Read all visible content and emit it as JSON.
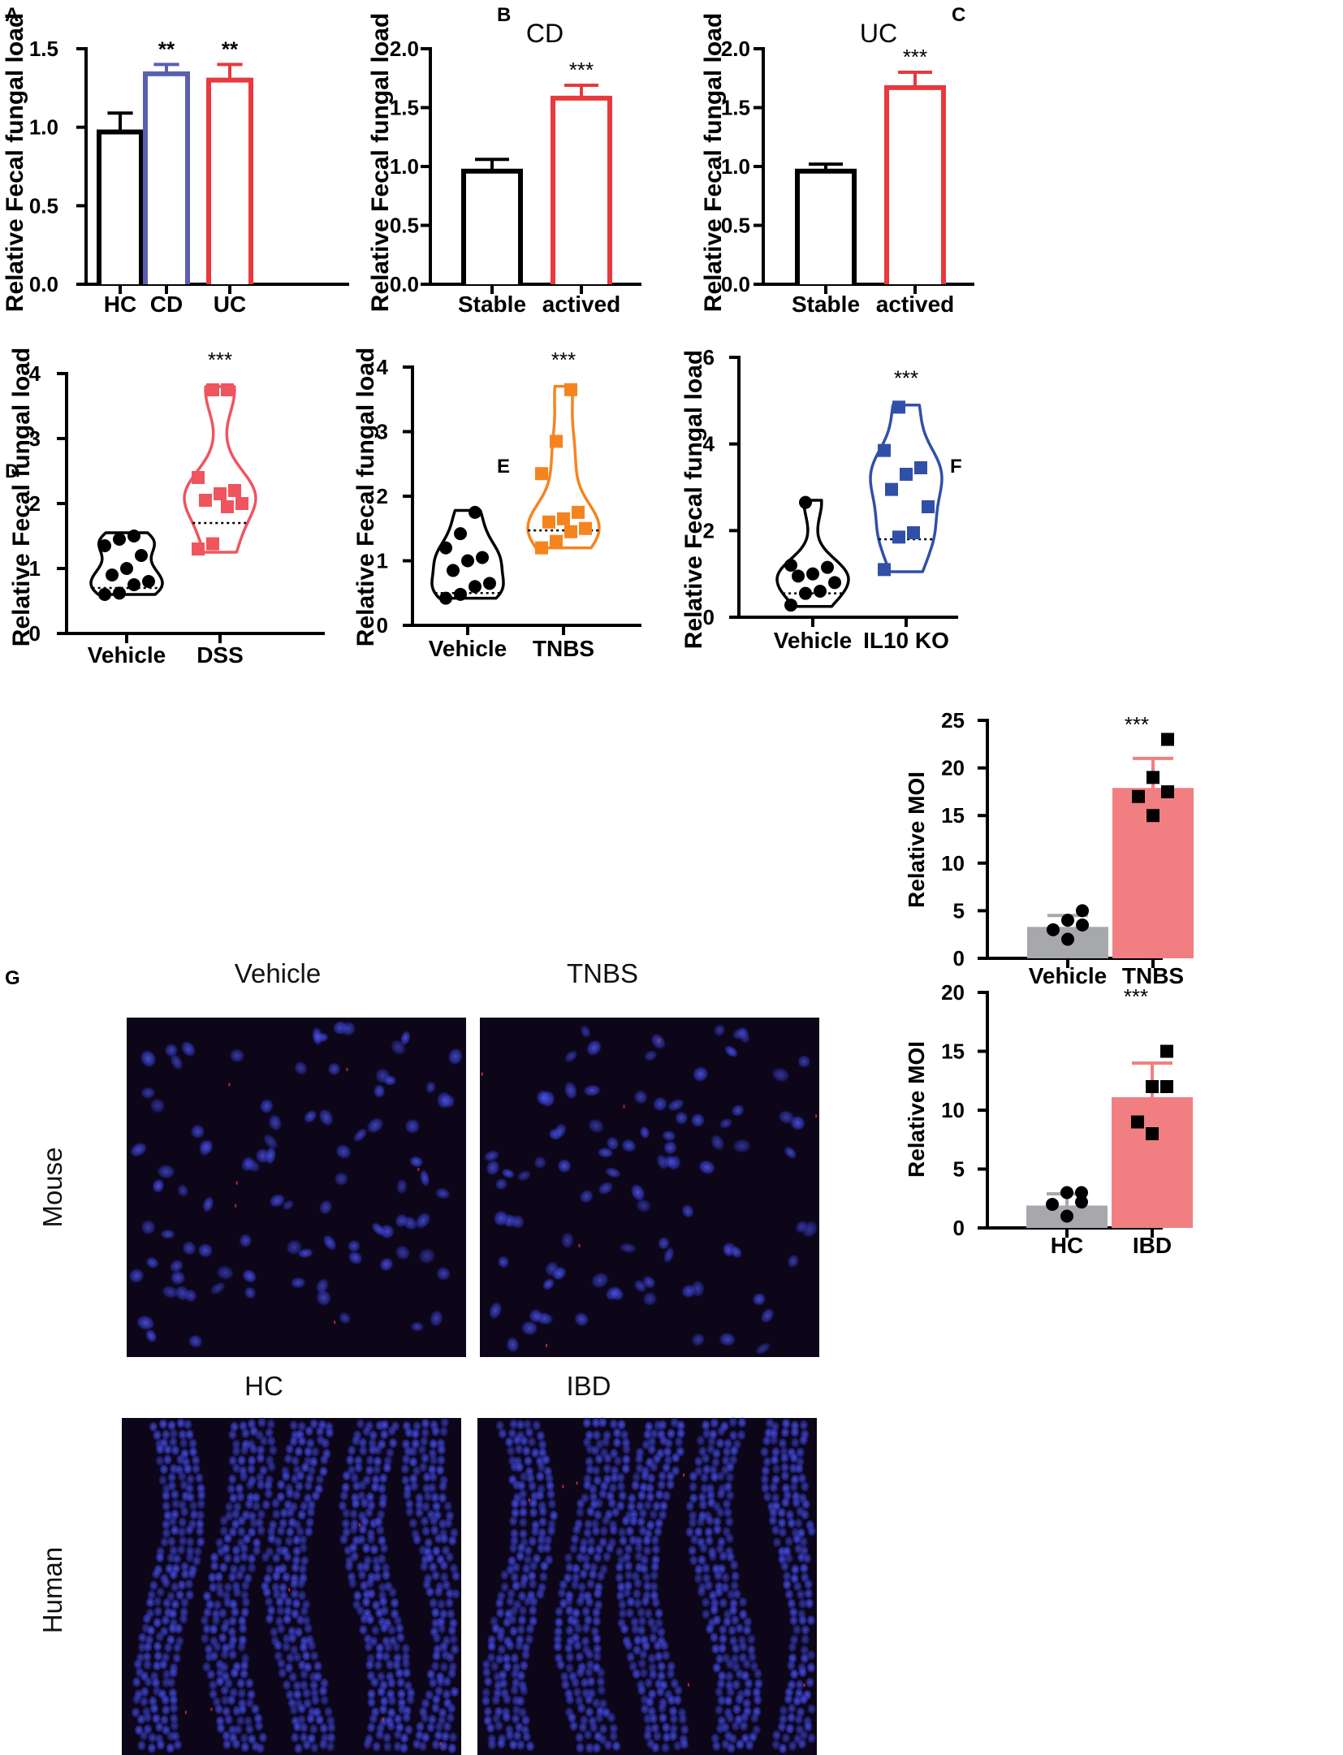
{
  "colors": {
    "black": "#000000",
    "blue": "#5b5fb0",
    "red": "#e8393e",
    "red_light": "#f0545e",
    "orange": "#f5841f",
    "navy": "#3050a8",
    "grey_bar": "#a7a8ac",
    "pink_bar": "#f17f82",
    "image_bg": "#0c0618",
    "nuclei": "#3a3fd0"
  },
  "panels": {
    "A": {
      "letter": "A"
    },
    "B": {
      "letter": "B"
    },
    "C": {
      "letter": "C"
    },
    "D": {
      "letter": "D"
    },
    "E": {
      "letter": "E"
    },
    "F": {
      "letter": "F"
    },
    "G": {
      "letter": "G",
      "col_labels_top": [
        "Vehicle",
        "TNBS"
      ],
      "col_labels_bottom": [
        "HC",
        "IBD"
      ],
      "row_labels": [
        "Mouse",
        "Human"
      ]
    }
  },
  "chart_data": [
    {
      "id": "A",
      "type": "bar",
      "title": "",
      "ylabel": "Relative Fecal fungal load",
      "categories": [
        "HC",
        "CD",
        "UC"
      ],
      "values": [
        0.97,
        1.34,
        1.3
      ],
      "errors": [
        0.12,
        0.06,
        0.1
      ],
      "bar_colors": [
        "#000000",
        "#5b5fb0",
        "#e8393e"
      ],
      "significance": [
        "",
        "**",
        "**"
      ],
      "ylim": [
        0,
        1.5
      ],
      "yticks": [
        "0.0",
        "0.5",
        "1.0",
        "1.5"
      ]
    },
    {
      "id": "B",
      "type": "bar",
      "title": "CD",
      "ylabel": "Relative Fecal fungal load",
      "categories": [
        "Stable",
        "actived"
      ],
      "values": [
        0.96,
        1.58
      ],
      "errors": [
        0.1,
        0.11
      ],
      "bar_colors": [
        "#000000",
        "#e8393e"
      ],
      "significance": [
        "",
        "***"
      ],
      "ylim": [
        0,
        2.0
      ],
      "yticks": [
        "0.0",
        "0.5",
        "1.0",
        "1.5",
        "2.0"
      ]
    },
    {
      "id": "C",
      "type": "bar",
      "title": "UC",
      "ylabel": "Relative Fecal fungal load",
      "categories": [
        "Stable",
        "actived"
      ],
      "values": [
        0.96,
        1.67
      ],
      "errors": [
        0.06,
        0.13
      ],
      "bar_colors": [
        "#000000",
        "#e8393e"
      ],
      "significance": [
        "",
        "***"
      ],
      "ylim": [
        0,
        2.0
      ],
      "yticks": [
        "0.0",
        "0.5",
        "1.0",
        "1.5",
        "2.0"
      ]
    },
    {
      "id": "D",
      "type": "violin",
      "ylabel": "Relative Fecal fungal load",
      "categories": [
        "Vehicle",
        "DSS"
      ],
      "colors": [
        "#000000",
        "#f0545e"
      ],
      "markers": [
        "circle",
        "square"
      ],
      "points": [
        [
          0.6,
          0.62,
          0.75,
          0.8,
          0.9,
          1.0,
          1.2,
          1.35,
          1.45,
          1.5
        ],
        [
          1.3,
          1.38,
          1.95,
          2.0,
          2.05,
          2.15,
          2.2,
          2.4,
          3.75,
          3.75
        ]
      ],
      "medians": [
        0.7,
        1.7
      ],
      "ranges": [
        [
          0.6,
          1.55
        ],
        [
          1.25,
          3.8
        ]
      ],
      "significance": [
        "",
        "***"
      ],
      "ylim": [
        0,
        4
      ],
      "yticks": [
        "0",
        "1",
        "2",
        "3",
        "4"
      ]
    },
    {
      "id": "E",
      "type": "violin",
      "ylabel": "Relative Fecal fungal load",
      "categories": [
        "Vehicle",
        "TNBS"
      ],
      "colors": [
        "#000000",
        "#f5841f"
      ],
      "markers": [
        "circle",
        "square"
      ],
      "points": [
        [
          0.42,
          0.48,
          0.6,
          0.65,
          0.85,
          1.0,
          1.05,
          1.2,
          1.42,
          1.75
        ],
        [
          1.2,
          1.3,
          1.45,
          1.5,
          1.6,
          1.65,
          1.75,
          2.35,
          2.85,
          3.65
        ]
      ],
      "medians": [
        0.5,
        1.47
      ],
      "ranges": [
        [
          0.42,
          1.78
        ],
        [
          1.2,
          3.7
        ]
      ],
      "significance": [
        "",
        "***"
      ],
      "ylim": [
        0,
        4
      ],
      "yticks": [
        "0",
        "1",
        "2",
        "3",
        "4"
      ]
    },
    {
      "id": "F",
      "type": "violin",
      "ylabel": "Relative Fecal fungal load",
      "categories": [
        "Vehicle",
        "IL10 KO"
      ],
      "colors": [
        "#000000",
        "#3050a8"
      ],
      "markers": [
        "circle",
        "square"
      ],
      "points": [
        [
          0.28,
          0.55,
          0.6,
          0.8,
          0.95,
          1.0,
          1.15,
          1.2,
          2.65
        ],
        [
          1.1,
          1.85,
          1.95,
          2.55,
          2.95,
          3.3,
          3.45,
          3.85,
          4.85
        ]
      ],
      "medians": [
        0.55,
        1.8
      ],
      "ranges": [
        [
          0.25,
          2.7
        ],
        [
          1.05,
          4.9
        ]
      ],
      "significance": [
        "",
        "***"
      ],
      "ylim": [
        0,
        6
      ],
      "yticks": [
        "0",
        "2",
        "4",
        "6"
      ]
    },
    {
      "id": "G-mouse",
      "type": "bar",
      "ylabel": "Relative MOI",
      "categories": [
        "Vehicle",
        "TNBS"
      ],
      "values": [
        3.3,
        17.9
      ],
      "errors": [
        1.2,
        3.1
      ],
      "bar_colors": [
        "#a7a8ac",
        "#f17f82"
      ],
      "markers": [
        "circle",
        "square"
      ],
      "points": [
        [
          2.0,
          3.0,
          3.5,
          4.0,
          5.0
        ],
        [
          15.0,
          17.0,
          17.5,
          19.0,
          23.0
        ]
      ],
      "significance": [
        "",
        "***"
      ],
      "ylim": [
        0,
        25
      ],
      "yticks": [
        "0",
        "5",
        "10",
        "15",
        "20",
        "25"
      ]
    },
    {
      "id": "G-human",
      "type": "bar",
      "ylabel": "Relative MOI",
      "categories": [
        "HC",
        "IBD"
      ],
      "values": [
        1.9,
        11.1
      ],
      "errors": [
        1.0,
        2.9
      ],
      "bar_colors": [
        "#a7a8ac",
        "#f17f82"
      ],
      "markers": [
        "circle",
        "square"
      ],
      "points": [
        [
          1.0,
          2.0,
          2.2,
          3.0,
          3.0
        ],
        [
          8.0,
          9.0,
          12.0,
          12.0,
          15.0
        ]
      ],
      "significance": [
        "",
        "***"
      ],
      "ylim": [
        0,
        20
      ],
      "yticks": [
        "0",
        "5",
        "10",
        "15",
        "20"
      ]
    }
  ]
}
